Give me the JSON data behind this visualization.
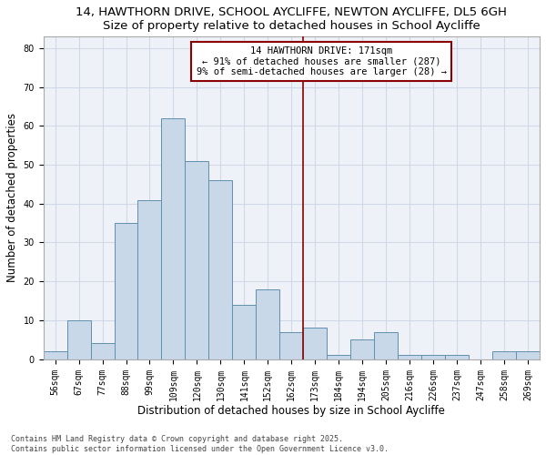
{
  "title1": "14, HAWTHORN DRIVE, SCHOOL AYCLIFFE, NEWTON AYCLIFFE, DL5 6GH",
  "title2": "Size of property relative to detached houses in School Aycliffe",
  "xlabel": "Distribution of detached houses by size in School Aycliffe",
  "ylabel": "Number of detached properties",
  "categories": [
    "56sqm",
    "67sqm",
    "77sqm",
    "88sqm",
    "99sqm",
    "109sqm",
    "120sqm",
    "130sqm",
    "141sqm",
    "152sqm",
    "162sqm",
    "173sqm",
    "184sqm",
    "194sqm",
    "205sqm",
    "216sqm",
    "226sqm",
    "237sqm",
    "247sqm",
    "258sqm",
    "269sqm"
  ],
  "values": [
    2,
    10,
    4,
    35,
    41,
    62,
    51,
    46,
    14,
    18,
    7,
    8,
    1,
    5,
    7,
    1,
    1,
    1,
    0,
    2,
    2
  ],
  "bar_color": "#c8d8e8",
  "bar_edge_color": "#6090b0",
  "highlight_line_idx": 11,
  "highlight_color": "#8b0000",
  "annotation_text": "14 HAWTHORN DRIVE: 171sqm\n← 91% of detached houses are smaller (287)\n9% of semi-detached houses are larger (28) →",
  "annotation_box_color": "#8b0000",
  "ylim": [
    0,
    83
  ],
  "yticks": [
    0,
    10,
    20,
    30,
    40,
    50,
    60,
    70,
    80
  ],
  "grid_color": "#d0d8e8",
  "background_color": "#eef2f8",
  "footer1": "Contains HM Land Registry data © Crown copyright and database right 2025.",
  "footer2": "Contains public sector information licensed under the Open Government Licence v3.0.",
  "title_fontsize": 9.5,
  "label_fontsize": 8.5,
  "tick_fontsize": 7,
  "annot_fontsize": 7.5
}
